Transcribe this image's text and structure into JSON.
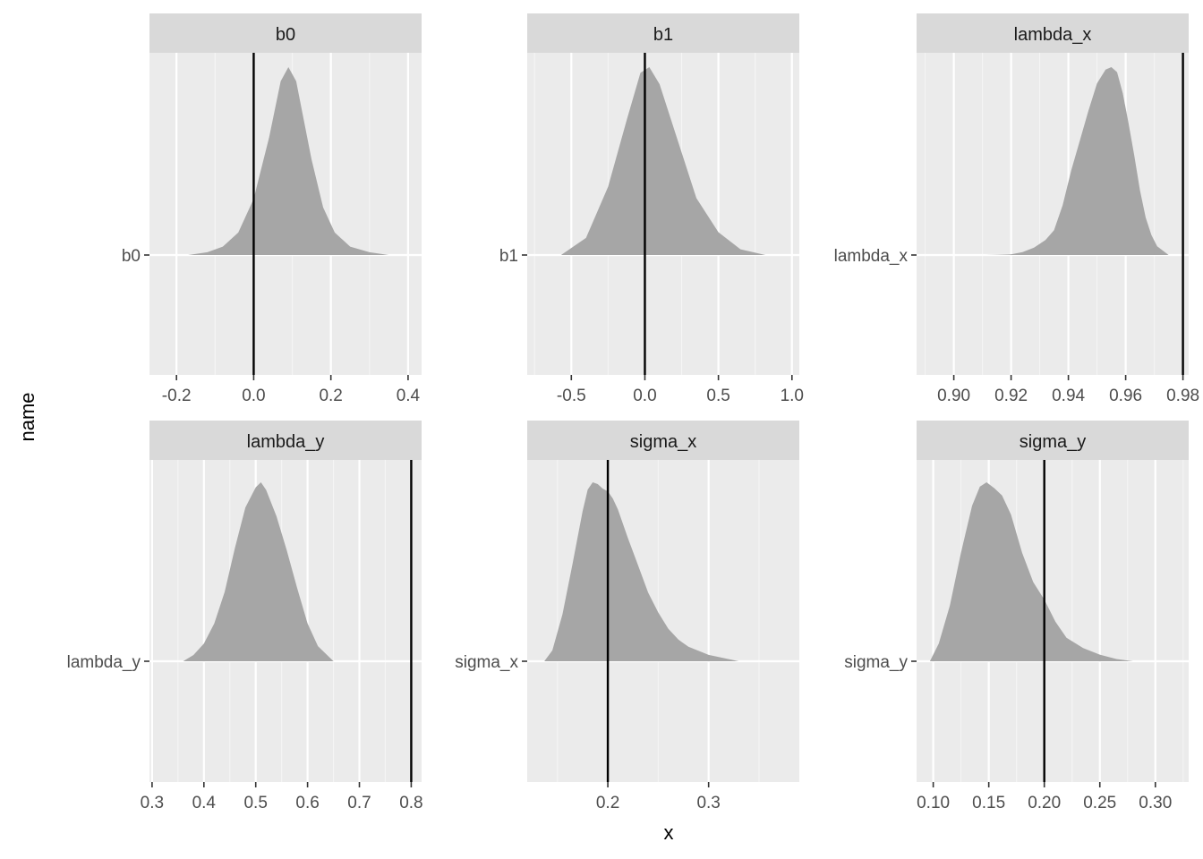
{
  "chart_data": {
    "type": "area",
    "layout": "facet-grid 2x3",
    "xlabel": "x",
    "ylabel": "name",
    "panels": [
      {
        "strip": "b0",
        "category": "b0",
        "xlim": [
          -0.27,
          0.435
        ],
        "xticks": [
          -0.2,
          0.0,
          0.2,
          0.4
        ],
        "xtick_labels": [
          "-0.2",
          "0.0",
          "0.2",
          "0.4"
        ],
        "xminor": [
          -0.1,
          0.1,
          0.3
        ],
        "reference_line": 0.0,
        "density": {
          "x": [
            -0.17,
            -0.12,
            -0.08,
            -0.04,
            0.0,
            0.04,
            0.07,
            0.09,
            0.11,
            0.13,
            0.15,
            0.18,
            0.21,
            0.25,
            0.3,
            0.35
          ],
          "y": [
            0.0,
            0.01,
            0.03,
            0.08,
            0.2,
            0.42,
            0.62,
            0.67,
            0.62,
            0.48,
            0.34,
            0.17,
            0.08,
            0.03,
            0.01,
            0.0
          ]
        }
      },
      {
        "strip": "b1",
        "category": "b1",
        "xlim": [
          -0.8,
          1.05
        ],
        "xticks": [
          -0.5,
          0.0,
          0.5,
          1.0
        ],
        "xtick_labels": [
          "-0.5",
          "0.0",
          "0.5",
          "1.0"
        ],
        "xminor": [
          -0.75,
          -0.25,
          0.25,
          0.75
        ],
        "reference_line": 0.0,
        "density": {
          "x": [
            -0.57,
            -0.4,
            -0.25,
            -0.12,
            -0.03,
            0.03,
            0.1,
            0.2,
            0.35,
            0.5,
            0.65,
            0.82
          ],
          "y": [
            0.0,
            0.03,
            0.12,
            0.24,
            0.32,
            0.33,
            0.3,
            0.22,
            0.1,
            0.04,
            0.01,
            0.0
          ]
        }
      },
      {
        "strip": "lambda_x",
        "category": "lambda_x",
        "xlim": [
          0.887,
          0.982
        ],
        "xticks": [
          0.9,
          0.92,
          0.94,
          0.96,
          0.98
        ],
        "xtick_labels": [
          "0.90",
          "0.92",
          "0.94",
          "0.96",
          "0.98"
        ],
        "xminor": [
          0.89,
          0.91,
          0.93,
          0.95,
          0.97
        ],
        "reference_line": 0.98,
        "density": {
          "x": [
            0.911,
            0.915,
            0.92,
            0.924,
            0.928,
            0.932,
            0.935,
            0.938,
            0.941,
            0.944,
            0.947,
            0.95,
            0.953,
            0.955,
            0.957,
            0.959,
            0.961,
            0.963,
            0.965,
            0.967,
            0.969,
            0.971,
            0.975
          ],
          "y": [
            0.0,
            0.01,
            0.03,
            0.12,
            0.3,
            0.6,
            1.0,
            2.0,
            3.4,
            4.6,
            5.8,
            6.9,
            7.45,
            7.55,
            7.35,
            6.5,
            5.3,
            4.0,
            2.6,
            1.5,
            0.8,
            0.35,
            0.0
          ]
        }
      },
      {
        "strip": "lambda_y",
        "category": "lambda_y",
        "xlim": [
          0.295,
          0.82
        ],
        "xticks": [
          0.3,
          0.4,
          0.5,
          0.6,
          0.7,
          0.8
        ],
        "xtick_labels": [
          "0.3",
          "0.4",
          "0.5",
          "0.6",
          "0.7",
          "0.8"
        ],
        "xminor": [
          0.35,
          0.45,
          0.55,
          0.65,
          0.75
        ],
        "reference_line": 0.8,
        "density": {
          "x": [
            0.36,
            0.38,
            0.4,
            0.42,
            0.44,
            0.46,
            0.48,
            0.5,
            0.51,
            0.52,
            0.54,
            0.56,
            0.58,
            0.6,
            0.62,
            0.65
          ],
          "y": [
            0.0,
            0.05,
            0.14,
            0.3,
            0.55,
            0.9,
            1.22,
            1.38,
            1.42,
            1.36,
            1.15,
            0.88,
            0.58,
            0.3,
            0.12,
            0.0
          ]
        }
      },
      {
        "strip": "sigma_x",
        "category": "sigma_x",
        "xlim": [
          0.12,
          0.39
        ],
        "xticks": [
          0.2,
          0.3
        ],
        "xtick_labels": [
          "0.2",
          "0.3"
        ],
        "xminor": [
          0.15,
          0.25,
          0.35
        ],
        "reference_line": 0.2,
        "density": {
          "x": [
            0.137,
            0.145,
            0.155,
            0.165,
            0.175,
            0.18,
            0.185,
            0.19,
            0.195,
            0.2,
            0.205,
            0.21,
            0.22,
            0.23,
            0.24,
            0.25,
            0.26,
            0.27,
            0.28,
            0.3,
            0.33
          ],
          "y": [
            0.0,
            0.6,
            2.6,
            5.4,
            8.3,
            9.5,
            9.9,
            9.8,
            9.55,
            9.4,
            9.0,
            8.4,
            6.8,
            5.3,
            3.8,
            2.7,
            1.8,
            1.2,
            0.8,
            0.35,
            0.0
          ]
        }
      },
      {
        "strip": "sigma_y",
        "category": "sigma_y",
        "xlim": [
          0.085,
          0.33
        ],
        "xticks": [
          0.1,
          0.15,
          0.2,
          0.25,
          0.3
        ],
        "xtick_labels": [
          "0.10",
          "0.15",
          "0.20",
          "0.25",
          "0.30"
        ],
        "xminor": [
          0.125,
          0.175,
          0.225,
          0.275,
          0.325
        ],
        "reference_line": 0.2,
        "density": {
          "x": [
            0.097,
            0.105,
            0.115,
            0.125,
            0.135,
            0.142,
            0.148,
            0.155,
            0.162,
            0.17,
            0.18,
            0.19,
            0.2,
            0.21,
            0.22,
            0.235,
            0.25,
            0.265,
            0.28
          ],
          "y": [
            0.0,
            1.2,
            3.8,
            7.4,
            10.6,
            11.9,
            12.2,
            11.8,
            11.3,
            10.0,
            7.4,
            5.4,
            4.2,
            2.7,
            1.6,
            0.9,
            0.45,
            0.15,
            0.0
          ]
        }
      }
    ]
  }
}
